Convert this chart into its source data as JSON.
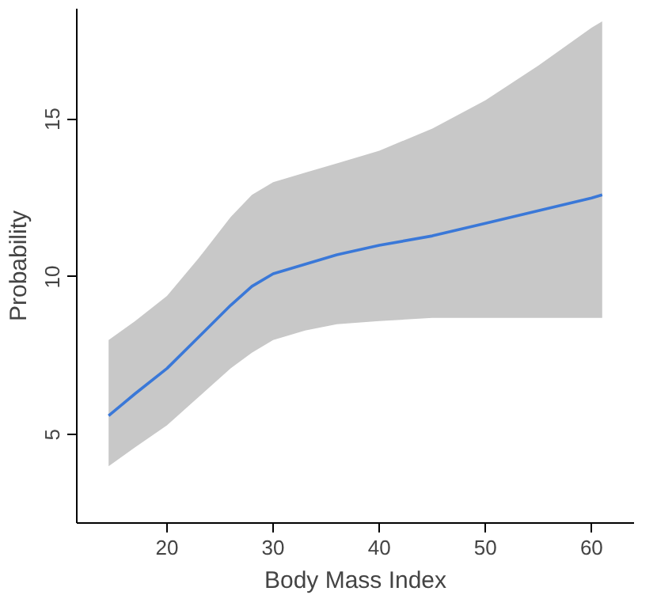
{
  "chart_data": {
    "type": "line",
    "xlabel": "Body Mass Index",
    "ylabel": "Probability",
    "x": [
      14.5,
      17,
      20,
      23,
      26,
      28,
      30,
      33,
      36,
      40,
      45,
      50,
      55,
      60,
      61
    ],
    "series": [
      {
        "color": "#3a78d8",
        "values": [
          5.6,
          6.3,
          7.1,
          8.1,
          9.1,
          9.7,
          10.1,
          10.4,
          10.7,
          11.0,
          11.3,
          11.7,
          12.1,
          12.5,
          12.6
        ],
        "upper": [
          8.0,
          8.6,
          9.4,
          10.6,
          11.9,
          12.6,
          13.0,
          13.3,
          13.6,
          14.0,
          14.7,
          15.6,
          16.7,
          17.9,
          18.1
        ],
        "lower": [
          4.0,
          4.6,
          5.3,
          6.2,
          7.1,
          7.6,
          8.0,
          8.3,
          8.5,
          8.6,
          8.7,
          8.7,
          8.7,
          8.7,
          8.7
        ]
      }
    ],
    "xlim": [
      11.5,
      64
    ],
    "ylim": [
      2.2,
      18.5
    ],
    "xticks": [
      20,
      30,
      40,
      50,
      60
    ],
    "yticks": [
      5,
      10,
      15
    ],
    "grid": false,
    "line_style": "solid"
  }
}
